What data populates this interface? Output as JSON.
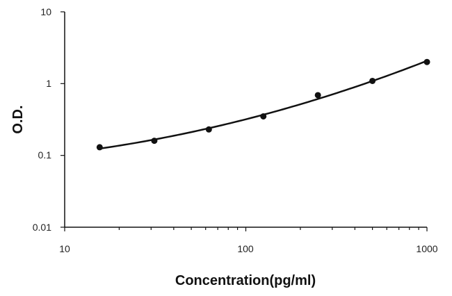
{
  "chart_data": {
    "type": "scatter",
    "title": "",
    "xlabel": "Concentration(pg/ml)",
    "ylabel": "O.D.",
    "x_scale": "log",
    "y_scale": "log",
    "xlim": [
      10,
      1000
    ],
    "ylim": [
      0.01,
      10
    ],
    "x_ticks": [
      "10",
      "100",
      "1000"
    ],
    "y_ticks": [
      "10",
      "1",
      "0.1",
      "0.01"
    ],
    "grid": false,
    "legend": "none",
    "series": [
      {
        "x": [
          15.6,
          31.25,
          62.5,
          125,
          250,
          500,
          1000
        ],
        "y": [
          0.13,
          0.16,
          0.23,
          0.35,
          0.69,
          1.09,
          2.0
        ],
        "marker": "circle",
        "fit_line": true
      }
    ],
    "colors": {
      "line": "#111111",
      "marker": "#111111",
      "axis": "#111111"
    }
  }
}
